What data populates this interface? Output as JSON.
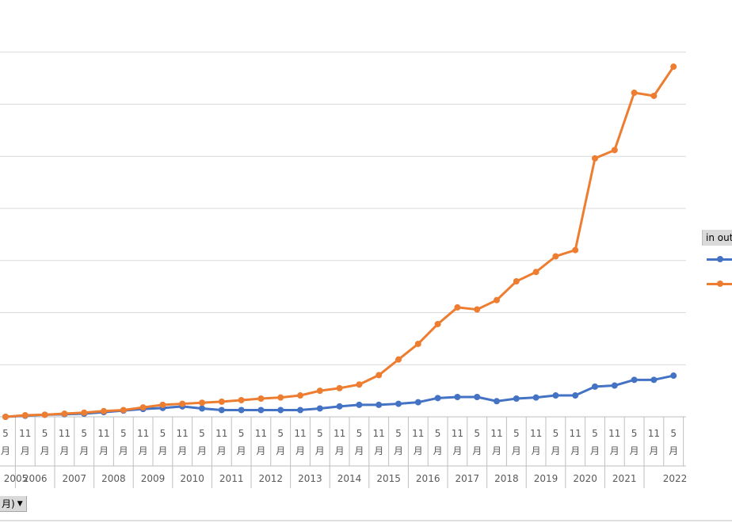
{
  "chart_data": {
    "type": "line",
    "x": [
      "2005-05",
      "2005-11",
      "2006-05",
      "2006-11",
      "2007-05",
      "2007-11",
      "2008-05",
      "2008-11",
      "2009-05",
      "2009-11",
      "2010-05",
      "2010-11",
      "2011-05",
      "2011-11",
      "2012-05",
      "2012-11",
      "2013-05",
      "2013-11",
      "2014-05",
      "2014-11",
      "2015-05",
      "2015-11",
      "2016-05",
      "2016-11",
      "2017-05",
      "2017-11",
      "2018-05",
      "2018-11",
      "2019-05",
      "2019-11",
      "2020-05",
      "2020-11",
      "2021-05",
      "2021-11",
      "2022-05"
    ],
    "month_labels": [
      "5",
      "11",
      "5",
      "11",
      "5",
      "11",
      "5",
      "11",
      "5",
      "11",
      "5",
      "11",
      "5",
      "11",
      "5",
      "11",
      "5",
      "11",
      "5",
      "11",
      "5",
      "11",
      "5",
      "11",
      "5",
      "11",
      "5",
      "11",
      "5",
      "11",
      "5",
      "11",
      "5",
      "11",
      "5"
    ],
    "month_unit": "月",
    "year_labels": [
      "2005",
      "2006",
      "2007",
      "2008",
      "2009",
      "2010",
      "2011",
      "2012",
      "2013",
      "2014",
      "2015",
      "2016",
      "2017",
      "2018",
      "2019",
      "2020",
      "2021",
      "2022"
    ],
    "series": [
      {
        "color": "#4472c4",
        "values": [
          0.0,
          0.1,
          0.2,
          0.25,
          0.3,
          0.45,
          0.6,
          0.75,
          0.85,
          1.0,
          0.8,
          0.65,
          0.65,
          0.65,
          0.65,
          0.65,
          0.8,
          1.0,
          1.15,
          1.15,
          1.25,
          1.4,
          1.8,
          1.9,
          1.9,
          1.5,
          1.75,
          1.85,
          2.05,
          2.05,
          2.9,
          3.0,
          3.55,
          3.55,
          3.95
        ]
      },
      {
        "color": "#ed7d31",
        "values": [
          0.0,
          0.15,
          0.2,
          0.3,
          0.4,
          0.55,
          0.65,
          0.9,
          1.15,
          1.25,
          1.35,
          1.45,
          1.6,
          1.75,
          1.85,
          2.05,
          2.5,
          2.75,
          3.1,
          4.0,
          5.5,
          7.0,
          8.9,
          10.5,
          10.3,
          11.2,
          13.0,
          13.9,
          15.4,
          16.0,
          24.8,
          25.6,
          31.1,
          30.8,
          33.6
        ]
      }
    ],
    "ylim": [
      0,
      40
    ],
    "y_gridlines": [
      5,
      10,
      15,
      20,
      25,
      30,
      35
    ],
    "grid": true,
    "legend": {
      "position": "right",
      "title": "in out"
    }
  },
  "field_button": {
    "label": "月)",
    "arrow": "▼"
  },
  "colors": {
    "gridline": "#d9d9d9",
    "axis": "#bfbfbf"
  }
}
